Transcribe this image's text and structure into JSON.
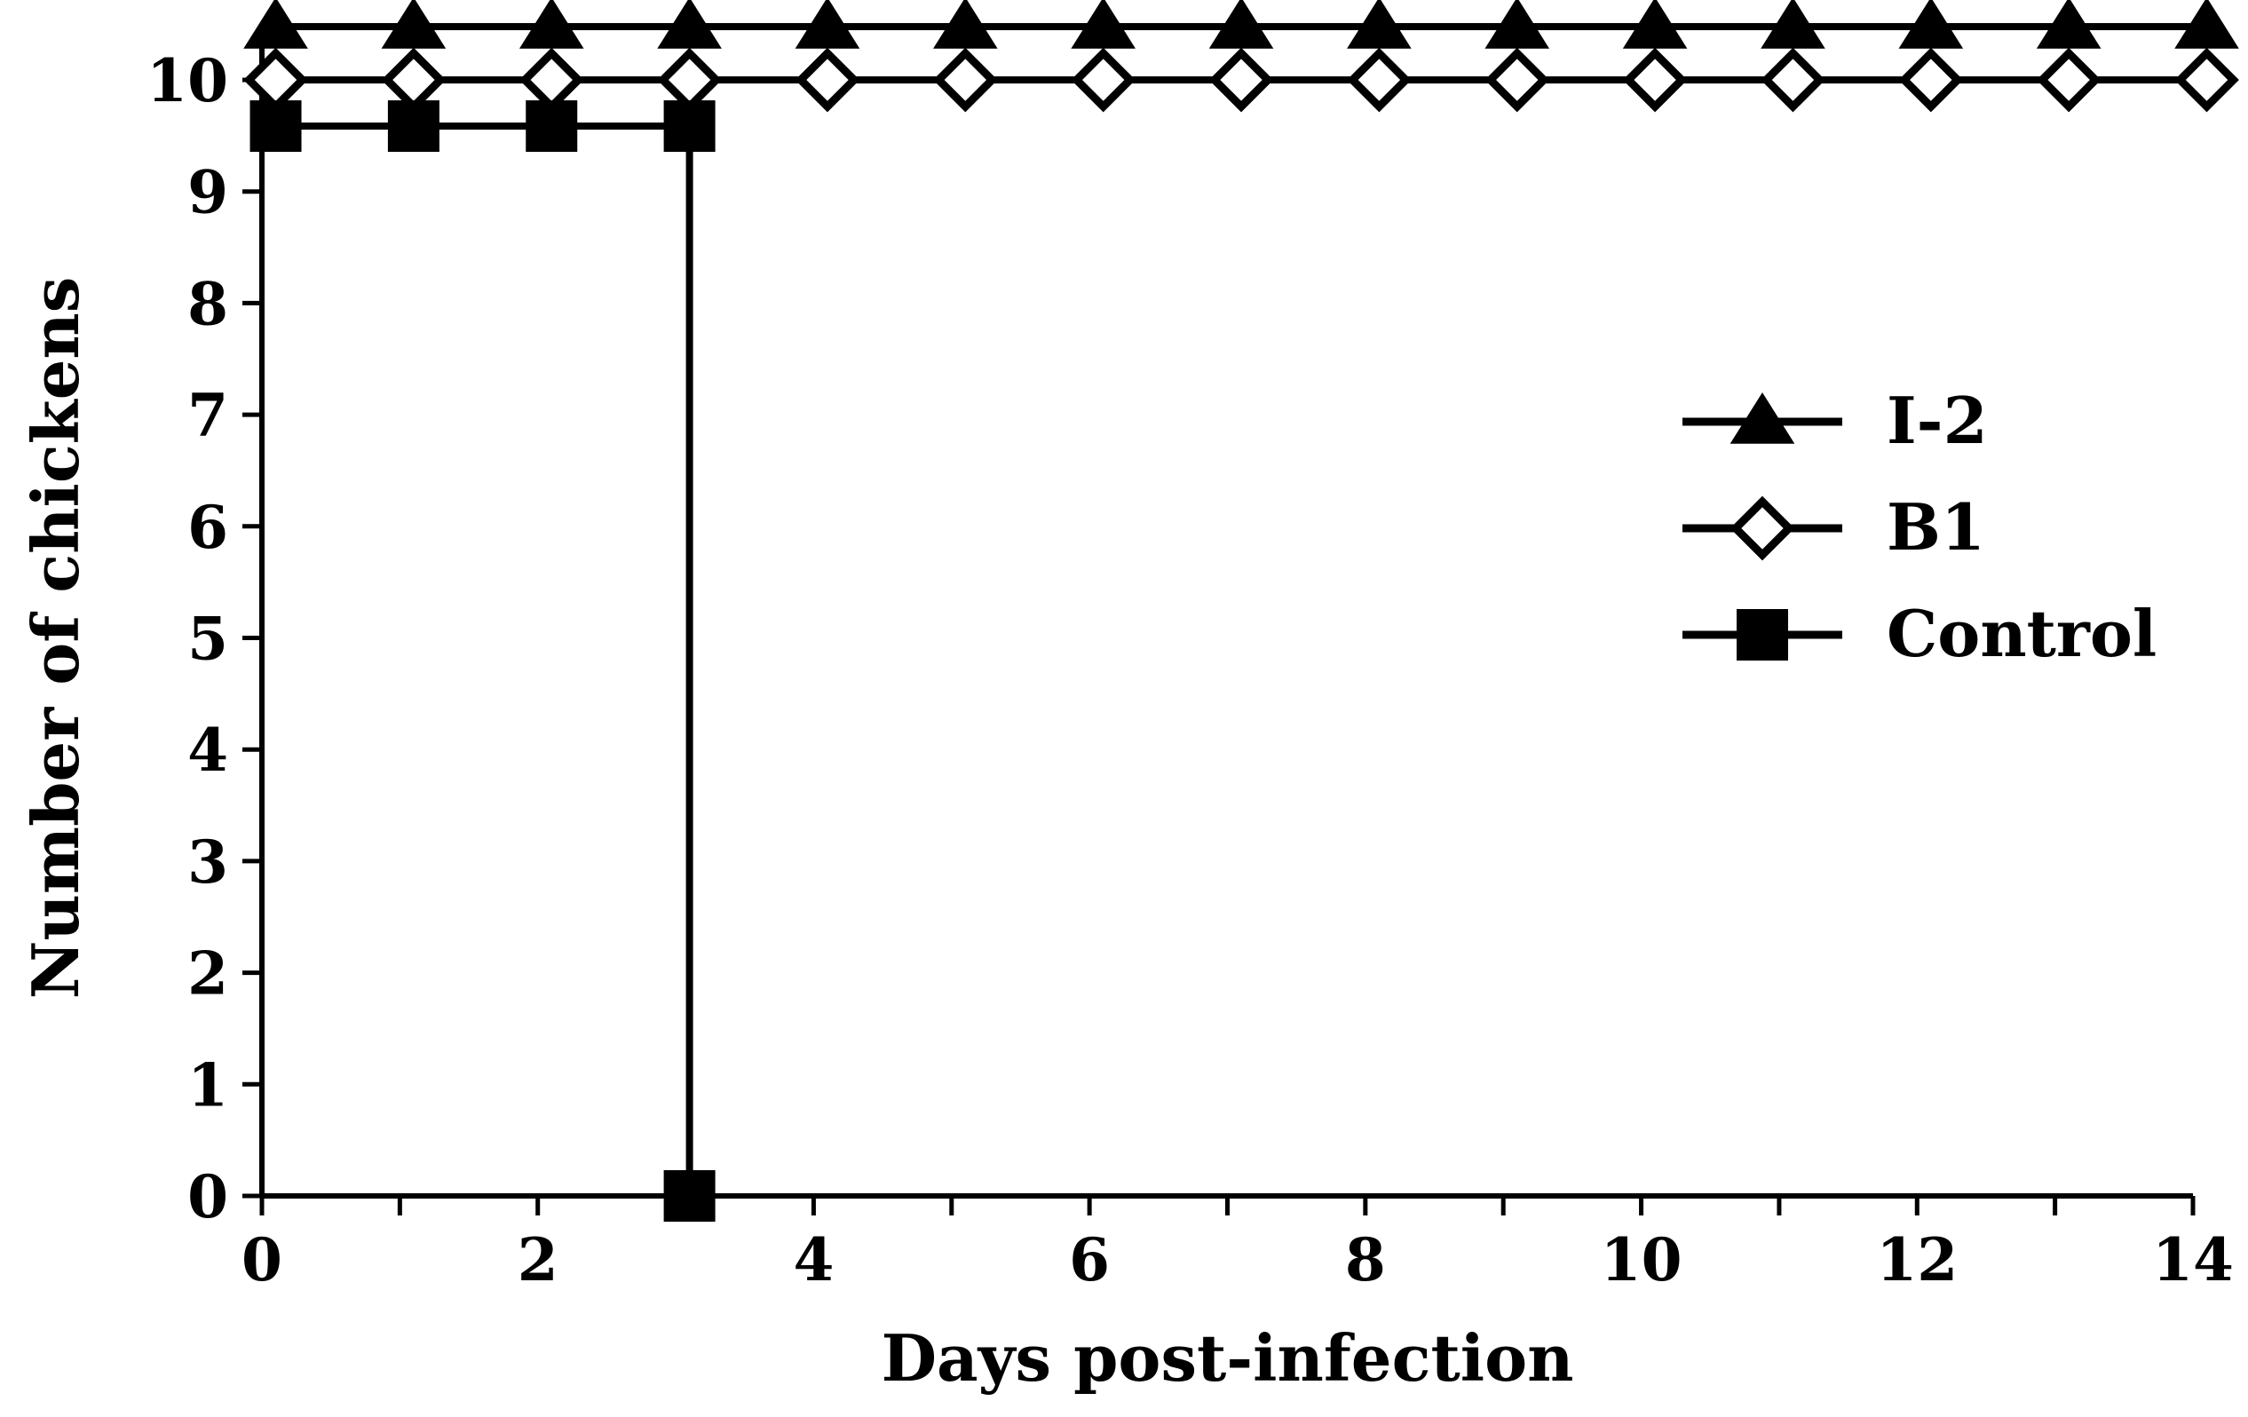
{
  "chart_data": {
    "type": "line",
    "xlabel": "Days post-infection",
    "ylabel": "Number of chickens",
    "xlim": [
      0,
      14
    ],
    "ylim": [
      0,
      10
    ],
    "x_ticks": [
      "0",
      "2",
      "4",
      "6",
      "8",
      "10",
      "12",
      "14"
    ],
    "y_ticks": [
      "0",
      "1",
      "2",
      "3",
      "4",
      "5",
      "6",
      "7",
      "8",
      "9",
      "10"
    ],
    "grid": false,
    "legend_position": "right",
    "series": [
      {
        "name": "I-2",
        "marker": "filled-triangle",
        "color": "#000000",
        "x": [
          0,
          1,
          2,
          3,
          4,
          5,
          6,
          7,
          8,
          9,
          10,
          11,
          12,
          13,
          14
        ],
        "y": [
          10,
          10,
          10,
          10,
          10,
          10,
          10,
          10,
          10,
          10,
          10,
          10,
          10,
          10,
          10
        ]
      },
      {
        "name": "B1",
        "marker": "open-diamond",
        "color": "#000000",
        "x": [
          0,
          1,
          2,
          3,
          4,
          5,
          6,
          7,
          8,
          9,
          10,
          11,
          12,
          13,
          14
        ],
        "y": [
          10,
          10,
          10,
          10,
          10,
          10,
          10,
          10,
          10,
          10,
          10,
          10,
          10,
          10,
          10
        ]
      },
      {
        "name": "Control",
        "marker": "filled-square",
        "color": "#000000",
        "x": [
          0,
          1,
          2,
          3,
          3
        ],
        "y": [
          10,
          10,
          10,
          10,
          0
        ]
      }
    ]
  }
}
